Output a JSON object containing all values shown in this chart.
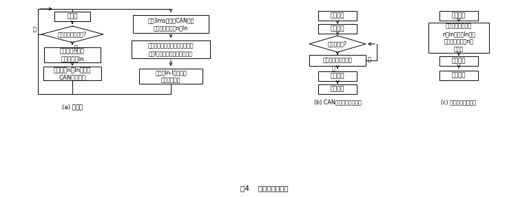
{
  "title": "图4    系统软件流程图",
  "bg_color": "#ffffff",
  "a_label": "(a) 主程序",
  "b_label": "(b) CAN接收中断服务程序",
  "c_label": "(c) 数据采集中断程序",
  "a_init": "初始化",
  "a_diamond": "一个周期结束了吗?",
  "a_yes": "是",
  "a_no": "否",
  "a_proc1_l1": "数据处理：计算",
  "a_proc1_l2": "电流有效值In",
  "a_proc2_l1": "把模块号n和In发送到",
  "a_proc2_l2": "CAN总线上去",
  "b1_l1": "延时3ms，通过CAN总线",
  "b1_l2": "接收其它模块号n和In",
  "b2_l1": "数据处理：计算所有模块的平均",
  "b2_l2": "电流I，然后把模块数据表清零",
  "b3_l1": "根据（In-I）的大小",
  "b3_l2": "调整输出电压",
  "c1": "保护现场",
  "c2": "数据采集",
  "c_diamond": "同步正常吗?",
  "c3": "发送正弦波基准信号",
  "c_no": "否",
  "c_yes": "是",
  "c4": "恢复现场",
  "c5": "中断返回",
  "d1": "保护现场",
  "d2_l1": "从接收邮箱中读取",
  "d2_l2": "n和In，并把In送到",
  "d2_l3": "模块数据表的第n项",
  "d2_l4": "记录去",
  "d3": "恢复现场",
  "d4": "中断返回"
}
